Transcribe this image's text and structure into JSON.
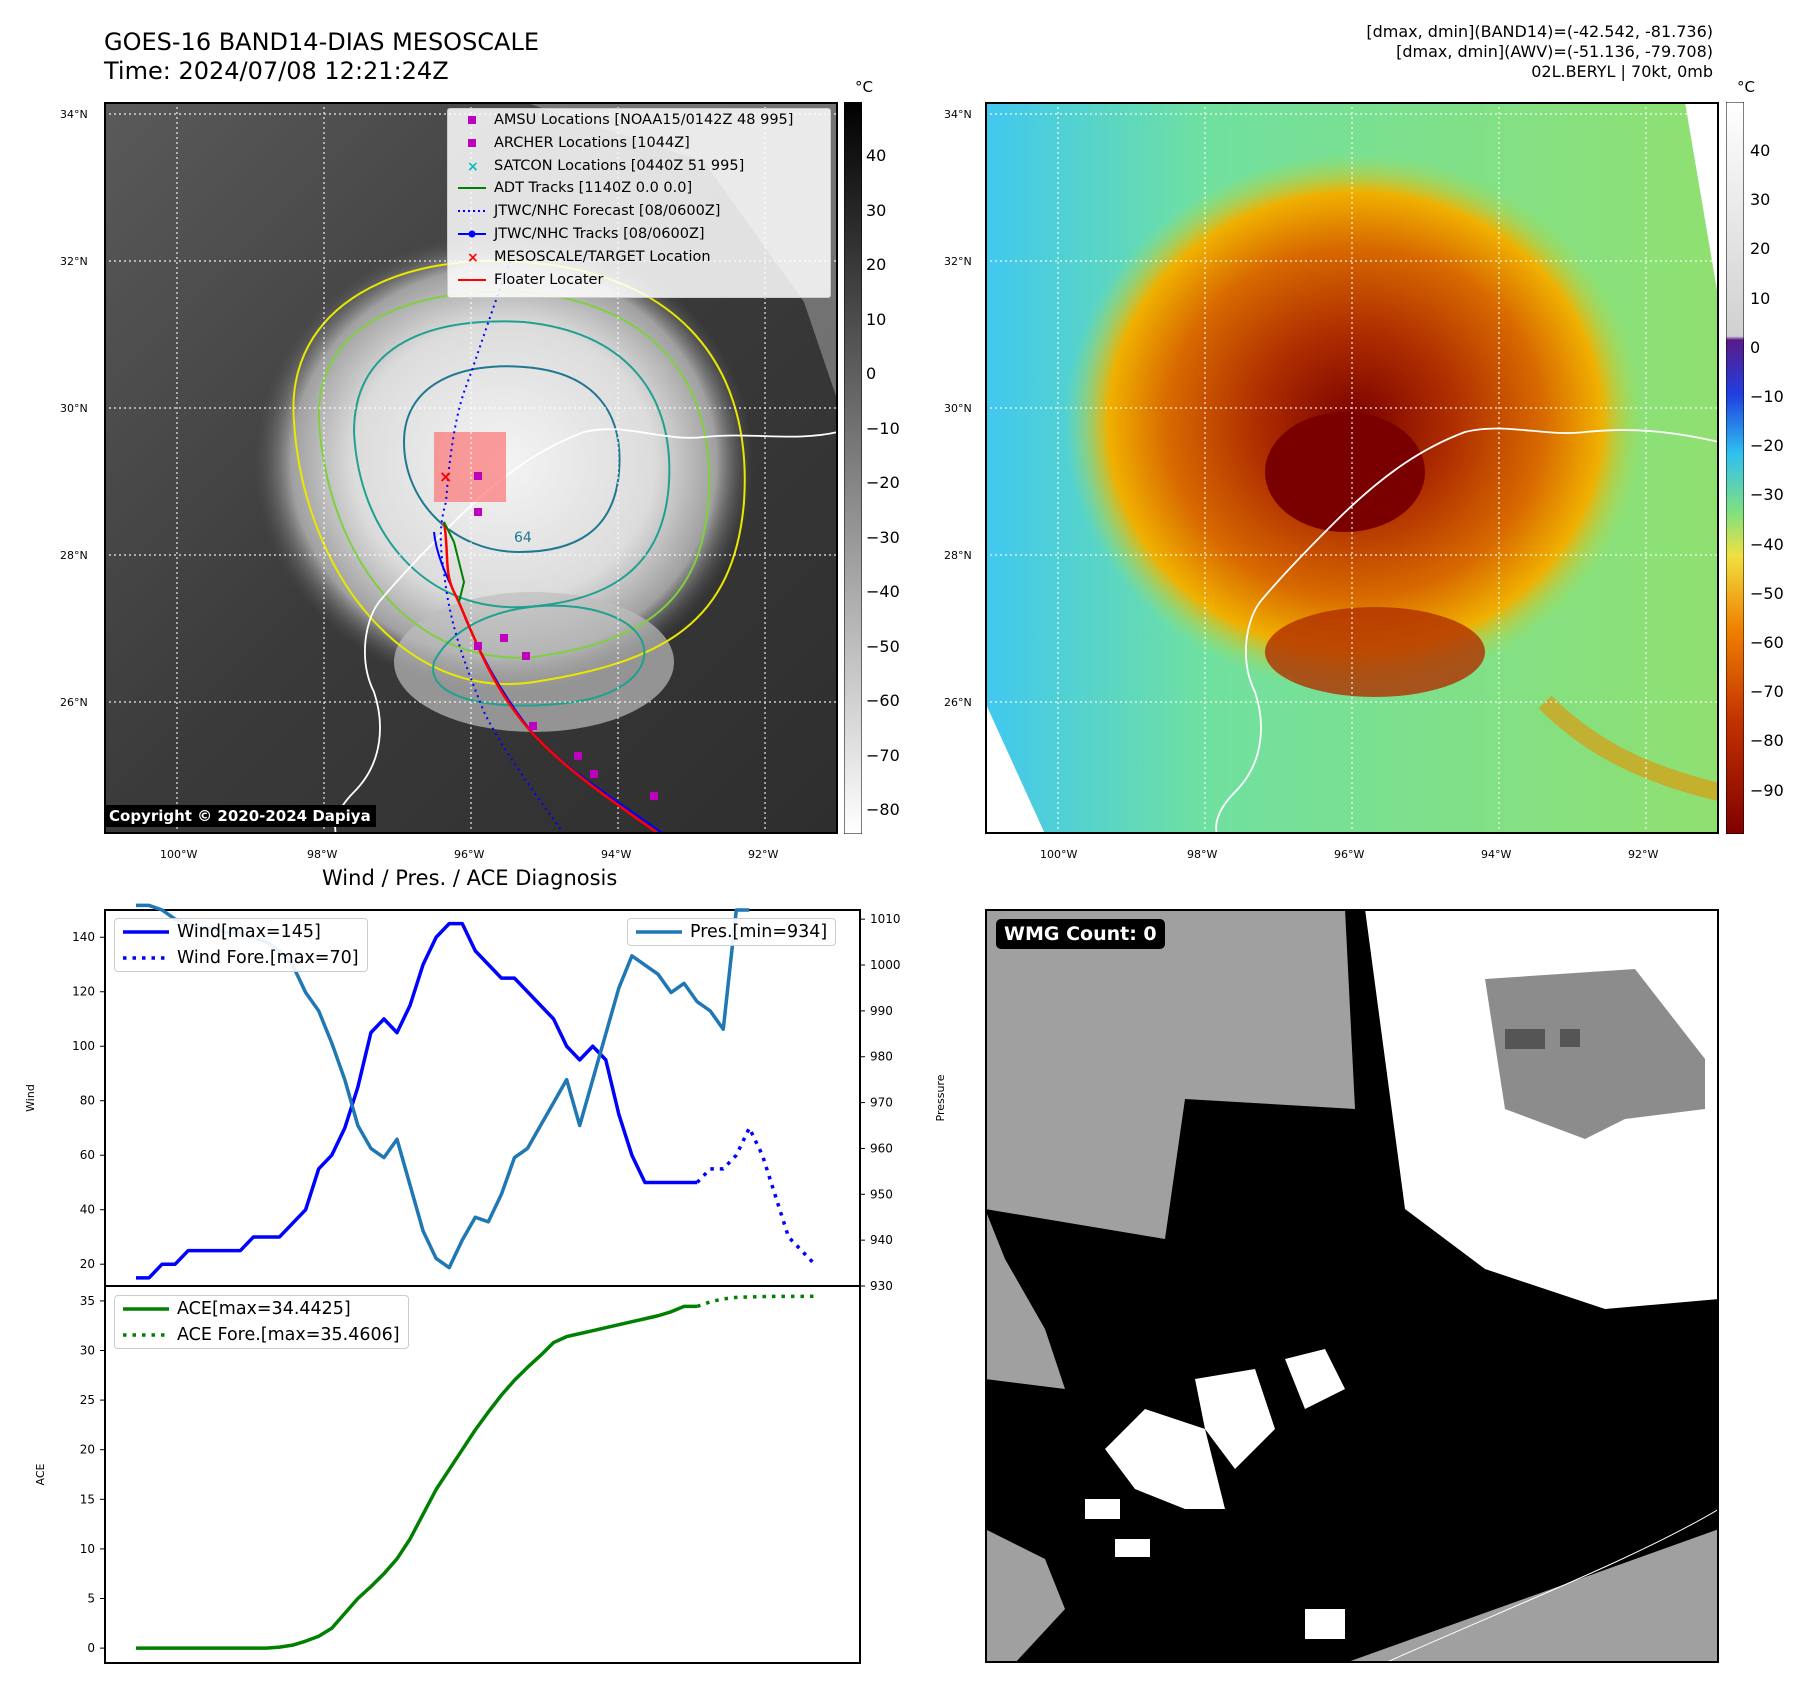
{
  "header": {
    "title_line1": "GOES-16 BAND14-DIAS MESOSCALE",
    "title_line2": "Time: 2024/07/08 12:21:24Z",
    "info_line1": "[dmax, dmin](BAND14)=(-42.542, -81.736)",
    "info_line2": "[dmax, dmin](AWV)=(-51.136, -79.708)",
    "info_line3": "02L.BERYL | 70kt, 0mb"
  },
  "colorbar_left": {
    "unit": "°C",
    "ticks": [
      "40",
      "30",
      "20",
      "10",
      "0",
      "−10",
      "−20",
      "−30",
      "−40",
      "−50",
      "−60",
      "−70",
      "−80"
    ]
  },
  "colorbar_right": {
    "unit": "°C",
    "ticks": [
      "40",
      "30",
      "20",
      "10",
      "0",
      "−10",
      "−20",
      "−30",
      "−40",
      "−50",
      "−60",
      "−70",
      "−80",
      "−90"
    ]
  },
  "map_axes": {
    "lat_ticks": [
      "34°N",
      "32°N",
      "30°N",
      "28°N",
      "26°N"
    ],
    "lon_ticks": [
      "100°W",
      "98°W",
      "96°W",
      "94°W",
      "92°W"
    ]
  },
  "map_legend": [
    {
      "label": "AMSU Locations [NOAA15/0142Z 48 995]",
      "marker": "square",
      "color": "#bf00bf"
    },
    {
      "label": "ARCHER Locations [1044Z]",
      "marker": "square",
      "color": "#bf00bf"
    },
    {
      "label": "SATCON Locations [0440Z 51 995]",
      "marker": "x",
      "color": "#00bfbf"
    },
    {
      "label": "ADT Tracks [1140Z 0.0 0.0]",
      "marker": "line",
      "color": "#008000"
    },
    {
      "label": "JTWC/NHC Forecast [08/0600Z]",
      "marker": "dotted",
      "color": "#0000ff"
    },
    {
      "label": "JTWC/NHC Tracks [08/0600Z]",
      "marker": "line-dot",
      "color": "#0000ff"
    },
    {
      "label": "MESOSCALE/TARGET Location",
      "marker": "x",
      "color": "#ff0000"
    },
    {
      "label": "Floater Locater",
      "marker": "line",
      "color": "#ff0000"
    }
  ],
  "copyright": "Copyright © 2020-2024 Dapiya",
  "contour_label": "64",
  "diagnosis_title": "Wind / Pres. / ACE Diagnosis",
  "wmg_label": "WMG Count: 0",
  "colors": {
    "wind": "#0000ff",
    "pressure": "#1f77b4",
    "ace": "#008000"
  },
  "chart_data": [
    {
      "type": "line",
      "ylabel": "Wind",
      "y2label": "Pressure",
      "ylim": [
        12,
        150
      ],
      "y2lim": [
        930,
        1012
      ],
      "yticks": [
        "140",
        "120",
        "100",
        "80",
        "60",
        "40",
        "20"
      ],
      "y2ticks": [
        "1010",
        "1000",
        "990",
        "980",
        "970",
        "960",
        "950",
        "940",
        "930"
      ],
      "series": [
        {
          "name": "Wind[max=145]",
          "axis": "left",
          "style": "solid",
          "color": "#0000ff",
          "x": [
            0,
            1,
            2,
            3,
            4,
            5,
            6,
            7,
            8,
            9,
            10,
            11,
            12,
            13,
            14,
            15,
            16,
            17,
            18,
            19,
            20,
            21,
            22,
            23,
            24,
            25,
            26,
            27,
            28,
            29,
            30,
            31,
            32,
            33,
            34,
            35,
            36,
            37,
            38,
            39,
            40,
            41,
            42,
            43
          ],
          "values": [
            15,
            15,
            20,
            20,
            25,
            25,
            25,
            25,
            25,
            30,
            30,
            30,
            35,
            40,
            55,
            60,
            70,
            85,
            105,
            110,
            105,
            115,
            130,
            140,
            145,
            145,
            135,
            130,
            125,
            125,
            120,
            115,
            110,
            100,
            95,
            100,
            95,
            75,
            60,
            50,
            50,
            50,
            50,
            50
          ]
        },
        {
          "name": "Wind Fore.[max=70]",
          "axis": "left",
          "style": "dotted",
          "color": "#0000ff",
          "x": [
            43,
            44,
            45,
            46,
            47,
            48,
            49,
            50,
            51,
            52
          ],
          "values": [
            50,
            55,
            55,
            60,
            70,
            60,
            45,
            30,
            25,
            20
          ]
        },
        {
          "name": "Pres.[min=934]",
          "axis": "right",
          "style": "solid",
          "color": "#1f77b4",
          "x": [
            0,
            1,
            2,
            3,
            4,
            5,
            6,
            7,
            8,
            9,
            10,
            11,
            12,
            13,
            14,
            15,
            16,
            17,
            18,
            19,
            20,
            21,
            22,
            23,
            24,
            25,
            26,
            27,
            28,
            29,
            30,
            31,
            32,
            33,
            34,
            35,
            36,
            37,
            38,
            39,
            40,
            41,
            42,
            43,
            44,
            45,
            46,
            47
          ],
          "values": [
            1013,
            1013,
            1012,
            1010,
            1009,
            1008,
            1008,
            1007,
            1007,
            1006,
            1005,
            1003,
            1000,
            994,
            990,
            983,
            975,
            965,
            960,
            958,
            962,
            952,
            942,
            936,
            934,
            940,
            945,
            944,
            950,
            958,
            960,
            965,
            970,
            975,
            965,
            975,
            985,
            995,
            1002,
            1000,
            998,
            994,
            996,
            992,
            990,
            986,
            1012,
            1012
          ]
        }
      ]
    },
    {
      "type": "line",
      "ylabel": "ACE",
      "ylim": [
        -1.5,
        36.5
      ],
      "yticks": [
        "35",
        "30",
        "25",
        "20",
        "15",
        "10",
        "5",
        "0"
      ],
      "series": [
        {
          "name": "ACE[max=34.4425]",
          "style": "solid",
          "color": "#008000",
          "x": [
            0,
            1,
            2,
            3,
            4,
            5,
            6,
            7,
            8,
            9,
            10,
            11,
            12,
            13,
            14,
            15,
            16,
            17,
            18,
            19,
            20,
            21,
            22,
            23,
            24,
            25,
            26,
            27,
            28,
            29,
            30,
            31,
            32,
            33,
            34,
            35,
            36,
            37,
            38,
            39,
            40,
            41,
            42,
            43
          ],
          "values": [
            0,
            0,
            0,
            0,
            0,
            0,
            0,
            0,
            0,
            0,
            0,
            0.1,
            0.3,
            0.7,
            1.2,
            2.0,
            3.5,
            5.0,
            6.2,
            7.5,
            9.0,
            11.0,
            13.5,
            16.0,
            18.0,
            20.0,
            22.0,
            23.8,
            25.5,
            27.0,
            28.3,
            29.5,
            30.8,
            31.4,
            31.7,
            32.0,
            32.3,
            32.6,
            32.9,
            33.2,
            33.5,
            33.9,
            34.4425,
            34.4425
          ]
        },
        {
          "name": "ACE Fore.[max=35.4606]",
          "style": "dotted",
          "color": "#008000",
          "x": [
            43,
            44,
            45,
            46,
            47,
            48,
            49,
            50,
            51,
            52
          ],
          "values": [
            34.4425,
            34.9,
            35.2,
            35.35,
            35.4,
            35.43,
            35.45,
            35.46,
            35.46,
            35.4606
          ]
        }
      ]
    }
  ]
}
